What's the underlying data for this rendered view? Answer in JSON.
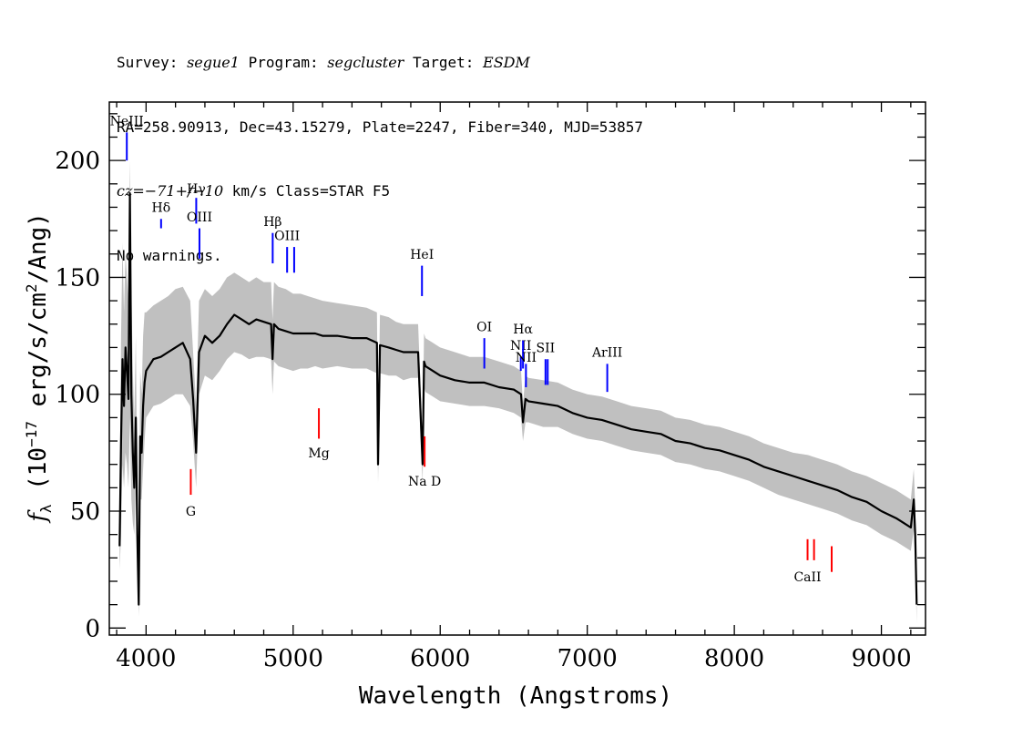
{
  "header": {
    "survey_prefix": "Survey: ",
    "survey": "segue1",
    "program_prefix": " Program: ",
    "program": "segcluster",
    "target_prefix": " Target: ",
    "target": "ESDM",
    "line2": "RA=258.90913, Dec=43.15279, Plate=2247, Fiber=340, MJD=53857",
    "cz_value": "cz=−71+/−10",
    "cz_rest": " km/s Class=STAR F5",
    "warnings": "No warnings."
  },
  "chart_data": {
    "type": "line",
    "xlabel": "Wavelength (Angstroms)",
    "ylabel_prefix": "f",
    "ylabel_sub": "λ",
    "ylabel_main": " (10",
    "ylabel_exp": "−17",
    "ylabel_rest": " erg/s/cm",
    "ylabel_exp2": "2",
    "ylabel_end": "/Ang)",
    "xlim": [
      3750,
      9300
    ],
    "ylim": [
      -3,
      225
    ],
    "x_ticks": [
      4000,
      5000,
      6000,
      7000,
      8000,
      9000
    ],
    "y_ticks": [
      0,
      50,
      100,
      150,
      200
    ],
    "colors": {
      "flux": "#000000",
      "error_band": "#c0c0c0",
      "emission_marker": "#0000ff",
      "absorption_marker": "#ff0000"
    },
    "series": [
      {
        "role": "smoothed flux",
        "x": [
          3820,
          3830,
          3840,
          3850,
          3860,
          3870,
          3880,
          3890,
          3900,
          3910,
          3920,
          3930,
          3940,
          3950,
          3960,
          3970,
          3980,
          3990,
          4000,
          4050,
          4100,
          4150,
          4200,
          4250,
          4300,
          4320,
          4340,
          4360,
          4400,
          4450,
          4500,
          4550,
          4600,
          4650,
          4700,
          4750,
          4800,
          4850,
          4860,
          4870,
          4900,
          4950,
          5000,
          5050,
          5100,
          5150,
          5200,
          5300,
          5400,
          5500,
          5570,
          5577,
          5590,
          5650,
          5700,
          5750,
          5800,
          5850,
          5880,
          5890,
          5900,
          5950,
          6000,
          6100,
          6200,
          6300,
          6400,
          6500,
          6550,
          6563,
          6580,
          6600,
          6700,
          6800,
          6900,
          7000,
          7100,
          7200,
          7300,
          7400,
          7500,
          7600,
          7700,
          7800,
          7900,
          8000,
          8100,
          8200,
          8300,
          8400,
          8500,
          8600,
          8700,
          8800,
          8900,
          9000,
          9100,
          9150,
          9200,
          9220,
          9230,
          9240
        ],
        "y": [
          35,
          80,
          115,
          95,
          120,
          110,
          98,
          186,
          100,
          75,
          60,
          90,
          40,
          10,
          82,
          75,
          95,
          105,
          110,
          115,
          116,
          118,
          120,
          122,
          115,
          98,
          75,
          118,
          125,
          122,
          125,
          130,
          134,
          132,
          130,
          132,
          131,
          130,
          115,
          130,
          128,
          127,
          126,
          126,
          126,
          126,
          125,
          125,
          124,
          124,
          122,
          70,
          121,
          120,
          119,
          118,
          118,
          118,
          70,
          114,
          112,
          110,
          108,
          106,
          105,
          105,
          103,
          102,
          100,
          88,
          98,
          97,
          96,
          95,
          92,
          90,
          89,
          87,
          85,
          84,
          83,
          80,
          79,
          77,
          76,
          74,
          72,
          69,
          67,
          65,
          63,
          61,
          59,
          56,
          54,
          50,
          47,
          45,
          43,
          55,
          40,
          10
        ],
        "err_lo": [
          25,
          40,
          70,
          60,
          75,
          70,
          60,
          90,
          55,
          45,
          40,
          60,
          25,
          5,
          55,
          55,
          68,
          80,
          90,
          95,
          96,
          98,
          100,
          100,
          95,
          80,
          60,
          100,
          108,
          106,
          110,
          115,
          118,
          117,
          115,
          116,
          116,
          115,
          100,
          114,
          112,
          111,
          110,
          111,
          111,
          112,
          111,
          112,
          111,
          111,
          109,
          62,
          109,
          108,
          108,
          106,
          107,
          107,
          62,
          103,
          101,
          99,
          97,
          96,
          95,
          95,
          94,
          92,
          90,
          80,
          88,
          88,
          86,
          86,
          83,
          81,
          80,
          78,
          76,
          75,
          74,
          71,
          70,
          68,
          67,
          65,
          63,
          60,
          57,
          55,
          53,
          51,
          49,
          46,
          44,
          40,
          37,
          35,
          33,
          42,
          28,
          2
        ],
        "err_hi": [
          45,
          125,
          165,
          135,
          160,
          150,
          140,
          200,
          145,
          110,
          90,
          125,
          60,
          20,
          110,
          100,
          125,
          135,
          135,
          138,
          140,
          142,
          145,
          146,
          140,
          118,
          95,
          140,
          145,
          142,
          145,
          150,
          152,
          150,
          148,
          150,
          148,
          148,
          132,
          148,
          146,
          145,
          143,
          143,
          142,
          141,
          140,
          139,
          138,
          137,
          135,
          80,
          134,
          133,
          131,
          130,
          130,
          130,
          80,
          126,
          124,
          122,
          120,
          118,
          116,
          116,
          114,
          112,
          110,
          96,
          108,
          107,
          106,
          105,
          102,
          100,
          99,
          97,
          95,
          94,
          93,
          90,
          89,
          87,
          86,
          84,
          82,
          79,
          77,
          75,
          74,
          72,
          70,
          67,
          65,
          62,
          59,
          57,
          55,
          68,
          52,
          18
        ]
      }
    ],
    "lines": [
      {
        "label": "NeIII",
        "x": 3869,
        "kind": "emission",
        "y0": 200,
        "y1": 212,
        "ly": 215
      },
      {
        "label": "Hδ",
        "x": 4102,
        "kind": "emission",
        "y0": 171,
        "y1": 175,
        "ly": 178
      },
      {
        "label": "Hγ",
        "x": 4341,
        "kind": "emission",
        "y0": 173,
        "y1": 184,
        "ly": 186
      },
      {
        "label": "OIII",
        "x": 4363,
        "kind": "emission",
        "y0": 158,
        "y1": 171,
        "ly": 174
      },
      {
        "label": "Hβ",
        "x": 4861,
        "kind": "emission",
        "y0": 156,
        "y1": 169,
        "ly": 172
      },
      {
        "label": "OIII",
        "x": 4959,
        "kind": "emission",
        "y0": 152,
        "y1": 163,
        "ly": 166
      },
      {
        "label": "",
        "x": 5007,
        "kind": "emission",
        "y0": 152,
        "y1": 163,
        "ly": 166
      },
      {
        "label": "HeI",
        "x": 5876,
        "kind": "emission",
        "y0": 142,
        "y1": 155,
        "ly": 158
      },
      {
        "label": "OI",
        "x": 6300,
        "kind": "emission",
        "y0": 111,
        "y1": 124,
        "ly": 127
      },
      {
        "label": "NII",
        "x": 6548,
        "kind": "emission",
        "y0": 110,
        "y1": 116,
        "ly": 119
      },
      {
        "label": "Hα",
        "x": 6563,
        "kind": "emission",
        "y0": 111,
        "y1": 123,
        "ly": 126
      },
      {
        "label": "NII",
        "x": 6583,
        "kind": "emission",
        "y0": 103,
        "y1": 113,
        "ly": 114
      },
      {
        "label": "SII",
        "x": 6716,
        "kind": "emission",
        "y0": 104,
        "y1": 115,
        "ly": 118
      },
      {
        "label": "",
        "x": 6731,
        "kind": "emission",
        "y0": 104,
        "y1": 115,
        "ly": 118
      },
      {
        "label": "ArIII",
        "x": 7136,
        "kind": "emission",
        "y0": 101,
        "y1": 113,
        "ly": 116
      },
      {
        "label": "G",
        "x": 4304,
        "kind": "absorption",
        "y0": 57,
        "y1": 68,
        "ly": 48
      },
      {
        "label": "Mg",
        "x": 5175,
        "kind": "absorption",
        "y0": 81,
        "y1": 94,
        "ly": 73
      },
      {
        "label": "Na D",
        "x": 5894,
        "kind": "absorption",
        "y0": 69,
        "y1": 82,
        "ly": 61
      },
      {
        "label": "CaII",
        "x": 8498,
        "kind": "absorption",
        "y0": 29,
        "y1": 38,
        "ly": 20
      },
      {
        "label": "",
        "x": 8542,
        "kind": "absorption",
        "y0": 29,
        "y1": 38,
        "ly": 20
      },
      {
        "label": "",
        "x": 8662,
        "kind": "absorption",
        "y0": 24,
        "y1": 35,
        "ly": 20
      }
    ]
  }
}
